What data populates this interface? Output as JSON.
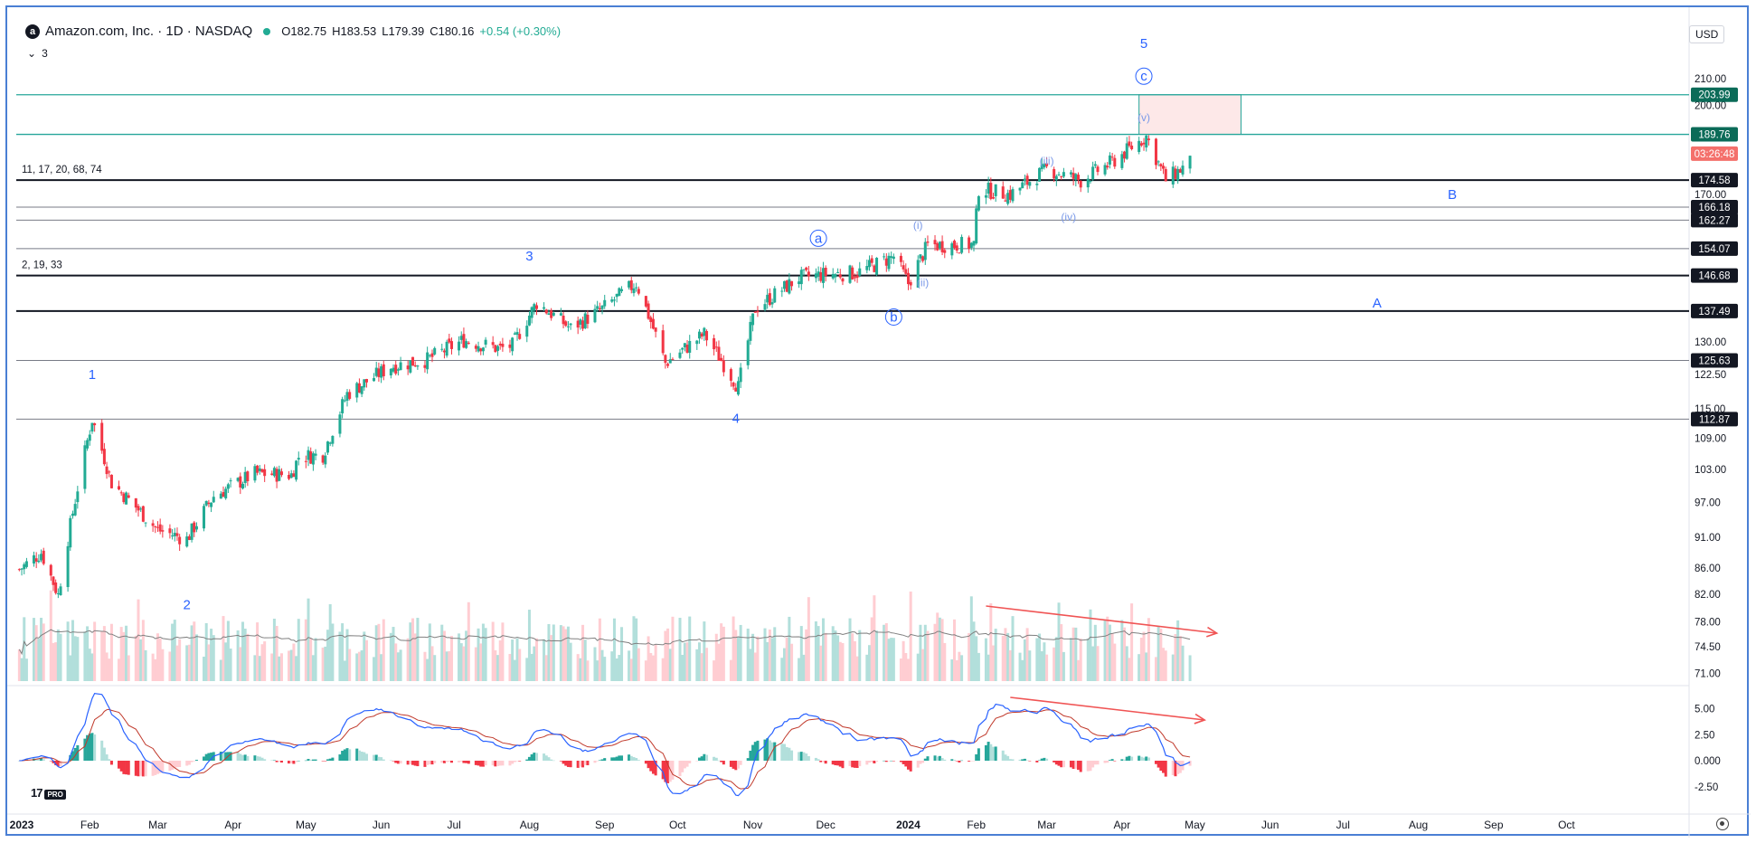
{
  "header": {
    "title": "Amazon.com, Inc. · 1D · NASDAQ",
    "logo": "a",
    "open": "O182.75",
    "high": "H183.53",
    "low": "L179.39",
    "close": "C180.16",
    "change": "+0.54 (+0.30%)",
    "indicator_toggle": "3",
    "currency": "USD"
  },
  "branding": {
    "tv": "17",
    "pro": "PRO"
  },
  "colors": {
    "up": "#22ab94",
    "down": "#f23645",
    "wave_label": "#2962ff",
    "price_line": "#131722",
    "box_fill": "#fde8e8",
    "box_stroke": "#26a69a",
    "tag_bg": "#131722",
    "tag_green": "#0b6b58",
    "countdown_bg": "#f4706b",
    "arrow": "#f05454",
    "macd_line": "#2962ff",
    "signal_line": "#c0392b",
    "vol_up": "#b2dfdb",
    "vol_down": "#ffcdd2",
    "vol_ma": "#808080"
  },
  "chart_data": {
    "type": "candlestick",
    "price_axis_ticks": [
      "210.00",
      "200.00",
      "170.00",
      "130.00",
      "122.50",
      "115.00",
      "109.00",
      "103.00",
      "97.00",
      "91.00",
      "86.00",
      "82.00",
      "78.00",
      "74.50",
      "71.00"
    ],
    "x_axis_ticks": [
      "2023",
      "Feb",
      "Mar",
      "Apr",
      "May",
      "Jun",
      "Jul",
      "Aug",
      "Sep",
      "Oct",
      "Nov",
      "Dec",
      "2024",
      "Feb",
      "Mar",
      "Apr",
      "May",
      "Jun",
      "Jul",
      "Aug",
      "Sep",
      "Oct"
    ],
    "macd_axis_ticks": [
      "5.00",
      "2.50",
      "0.000",
      "-2.50"
    ],
    "current_price_tag": "03:26:48",
    "horizontal_levels": [
      {
        "price": 203.99,
        "label": "203.99",
        "style": "green"
      },
      {
        "price": 189.76,
        "label": "189.76",
        "style": "green"
      },
      {
        "price": 174.58,
        "label": "174.58",
        "style": "black"
      },
      {
        "price": 166.18,
        "label": "166.18",
        "style": "thin"
      },
      {
        "price": 162.27,
        "label": "162.27",
        "style": "thin"
      },
      {
        "price": 154.07,
        "label": "154.07",
        "style": "thin"
      },
      {
        "price": 146.68,
        "label": "146.68",
        "style": "black"
      },
      {
        "price": 137.49,
        "label": "137.49",
        "style": "black"
      },
      {
        "price": 125.63,
        "label": "125.63",
        "style": "thin"
      },
      {
        "price": 112.87,
        "label": "112.87",
        "style": "thin"
      }
    ],
    "level_notes": [
      {
        "text": "11, 17, 20, 68, 74",
        "price": 174.58
      },
      {
        "text": "2, 19, 33",
        "price": 146.68
      }
    ],
    "wave_labels": [
      {
        "text": "1",
        "date": "2023-02-02",
        "price": 122.5,
        "circled": false
      },
      {
        "text": "2",
        "date": "2023-03-13",
        "price": 80.5,
        "circled": false
      },
      {
        "text": "3",
        "date": "2023-08-01",
        "price": 152,
        "circled": false
      },
      {
        "text": "4",
        "date": "2023-10-25",
        "price": 113,
        "circled": false
      },
      {
        "text": "5",
        "date": "2024-04-10",
        "price": 224,
        "circled": false
      },
      {
        "text": "a",
        "date": "2023-11-28",
        "price": 157,
        "circled": true
      },
      {
        "text": "b",
        "date": "2023-12-29",
        "price": 136,
        "circled": true
      },
      {
        "text": "c",
        "date": "2024-04-10",
        "price": 211,
        "circled": true
      },
      {
        "text": "(i)",
        "date": "2024-01-08",
        "price": 161,
        "circled": false
      },
      {
        "text": "(ii)",
        "date": "2024-01-10",
        "price": 145,
        "circled": false
      },
      {
        "text": "(iii)",
        "date": "2024-03-01",
        "price": 181,
        "circled": false
      },
      {
        "text": "(iv)",
        "date": "2024-03-10",
        "price": 163.5,
        "circled": false
      },
      {
        "text": "(v)",
        "date": "2024-04-10",
        "price": 196,
        "circled": false
      },
      {
        "text": "B",
        "date": "2024-08-15",
        "price": 170,
        "circled": false
      },
      {
        "text": "A",
        "date": "2024-07-15",
        "price": 139.5,
        "circled": false
      }
    ],
    "target_box": {
      "date_start": "2024-04-08",
      "date_end": "2024-05-20",
      "price_low": 189.76,
      "price_high": 203.99
    },
    "anchors": [
      {
        "date": "2023-01-03",
        "close": 85.8
      },
      {
        "date": "2023-01-12",
        "close": 88.5
      },
      {
        "date": "2023-01-19",
        "close": 81.9
      },
      {
        "date": "2023-02-02",
        "close": 112.9
      },
      {
        "date": "2023-02-10",
        "close": 100.5
      },
      {
        "date": "2023-03-01",
        "close": 92.2
      },
      {
        "date": "2023-03-13",
        "close": 90.7
      },
      {
        "date": "2023-03-24",
        "close": 98.1
      },
      {
        "date": "2023-04-10",
        "close": 102.2
      },
      {
        "date": "2023-04-25",
        "close": 102.0
      },
      {
        "date": "2023-04-28",
        "close": 105.4
      },
      {
        "date": "2023-05-08",
        "close": 105.8
      },
      {
        "date": "2023-05-18",
        "close": 118.2
      },
      {
        "date": "2023-06-05",
        "close": 124.3
      },
      {
        "date": "2023-06-20",
        "close": 125.8
      },
      {
        "date": "2023-07-05",
        "close": 130.4
      },
      {
        "date": "2023-07-20",
        "close": 128.3
      },
      {
        "date": "2023-07-25",
        "close": 129.1
      },
      {
        "date": "2023-08-04",
        "close": 139.6
      },
      {
        "date": "2023-08-18",
        "close": 133.2
      },
      {
        "date": "2023-08-31",
        "close": 138.0
      },
      {
        "date": "2023-09-14",
        "close": 144.7
      },
      {
        "date": "2023-09-26",
        "close": 125.0
      },
      {
        "date": "2023-10-12",
        "close": 131.8
      },
      {
        "date": "2023-10-26",
        "close": 119.6
      },
      {
        "date": "2023-11-02",
        "close": 138.1
      },
      {
        "date": "2023-11-20",
        "close": 146.1
      },
      {
        "date": "2023-12-01",
        "close": 147.0
      },
      {
        "date": "2023-12-14",
        "close": 147.4
      },
      {
        "date": "2023-12-29",
        "close": 151.9
      },
      {
        "date": "2024-01-04",
        "close": 144.6
      },
      {
        "date": "2024-01-12",
        "close": 155.0
      },
      {
        "date": "2024-01-31",
        "close": 155.2
      },
      {
        "date": "2024-02-02",
        "close": 171.8
      },
      {
        "date": "2024-02-15",
        "close": 170.0
      },
      {
        "date": "2024-03-01",
        "close": 178.2
      },
      {
        "date": "2024-03-15",
        "close": 174.4
      },
      {
        "date": "2024-03-28",
        "close": 180.4
      },
      {
        "date": "2024-04-11",
        "close": 189.1
      },
      {
        "date": "2024-04-19",
        "close": 174.6
      },
      {
        "date": "2024-04-29",
        "close": 180.2
      }
    ],
    "volume_ma_note": "gray moving average over volume bars",
    "macd": {
      "series": [
        "MACD",
        "Signal",
        "Histogram"
      ]
    },
    "divergence_arrows": [
      {
        "pane": "price",
        "from_date": "2024-02-05",
        "to_date": "2024-05-10"
      },
      {
        "pane": "macd",
        "from_date": "2024-02-15",
        "to_date": "2024-05-05"
      }
    ],
    "log_scale": true,
    "grid": false
  }
}
